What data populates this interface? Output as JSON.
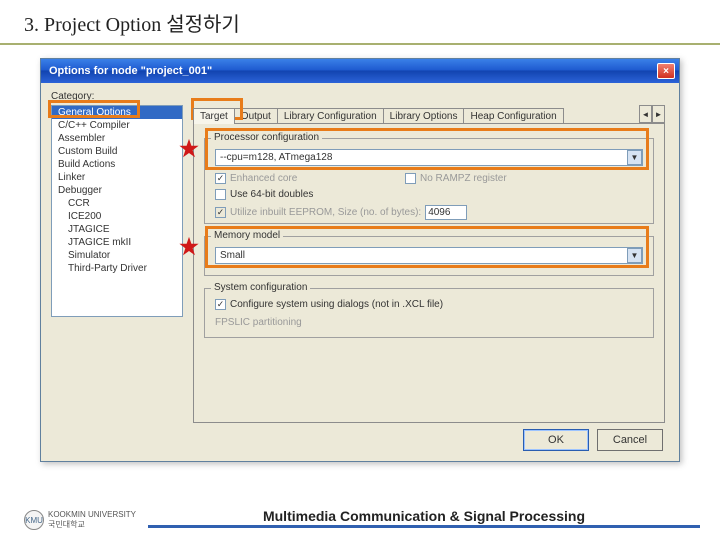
{
  "slide": {
    "title": "3. Project Option 설정하기",
    "footer": "Multimedia Communication & Signal Processing",
    "logo_text_top": "KOOKMIN UNIVERSITY",
    "logo_text_bottom": "국민대학교",
    "logo_badge": "KMU"
  },
  "window": {
    "title": "Options for node \"project_001\"",
    "close_glyph": "×",
    "ok_label": "OK",
    "cancel_label": "Cancel"
  },
  "category": {
    "label": "Category:",
    "items": [
      {
        "label": "General Options",
        "sub": false,
        "selected": true
      },
      {
        "label": "C/C++ Compiler",
        "sub": false,
        "selected": false
      },
      {
        "label": "Assembler",
        "sub": false,
        "selected": false
      },
      {
        "label": "Custom Build",
        "sub": false,
        "selected": false
      },
      {
        "label": "Build Actions",
        "sub": false,
        "selected": false
      },
      {
        "label": "Linker",
        "sub": false,
        "selected": false
      },
      {
        "label": "Debugger",
        "sub": false,
        "selected": false
      },
      {
        "label": "CCR",
        "sub": true,
        "selected": false
      },
      {
        "label": "ICE200",
        "sub": true,
        "selected": false
      },
      {
        "label": "JTAGICE",
        "sub": true,
        "selected": false
      },
      {
        "label": "JTAGICE mkII",
        "sub": true,
        "selected": false
      },
      {
        "label": "Simulator",
        "sub": true,
        "selected": false
      },
      {
        "label": "Third-Party Driver",
        "sub": true,
        "selected": false
      }
    ]
  },
  "tabs": {
    "items": [
      "Target",
      "Output",
      "Library Configuration",
      "Library Options",
      "Heap Configuration"
    ],
    "active_index": 0,
    "scroll_left": "◄",
    "scroll_right": "►"
  },
  "target_panel": {
    "processor_group": "Processor configuration",
    "processor_value": "--cpu=m128, ATmega128",
    "enhanced_core": "Enhanced core",
    "no_rampz": "No RAMPZ register",
    "use_64bit": "Use 64-bit doubles",
    "utilize_eeprom": "Utilize inbuilt EEPROM, Size (no. of bytes):",
    "eeprom_size": "4096",
    "memory_group": "Memory model",
    "memory_value": "Small",
    "system_group": "System configuration",
    "config_dialogs": "Configure system using dialogs (not in .XCL file)",
    "fpslic": "FPSLIC partitioning"
  },
  "highlight_color": "#e87c1a",
  "star_color": "#d01818"
}
